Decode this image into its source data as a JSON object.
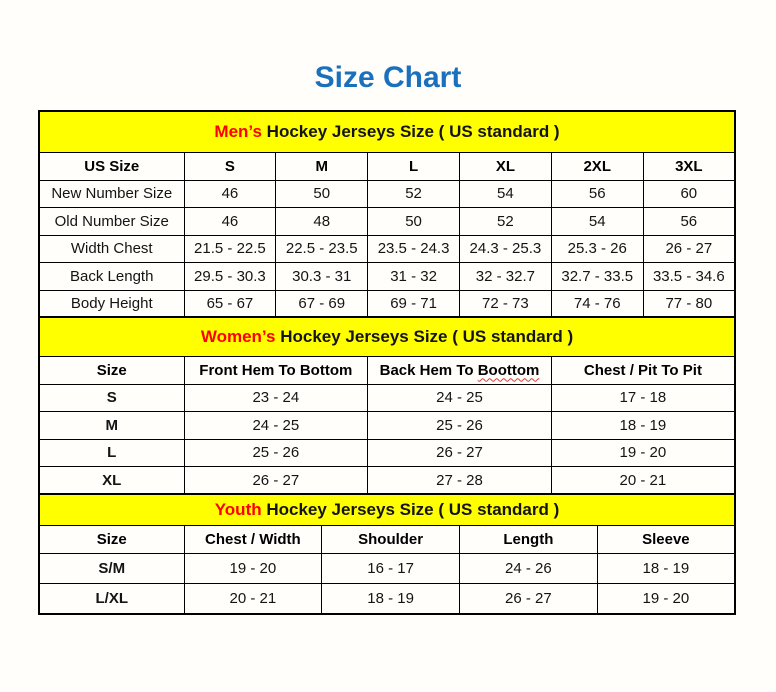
{
  "page": {
    "title": "Size Chart"
  },
  "colors": {
    "title_blue": "#1b70bd",
    "accent_red": "#ff0000",
    "band_yellow": "#ffff00",
    "border_black": "#000000"
  },
  "sections": [
    {
      "id": "mens",
      "banner": {
        "highlight": "Men’s",
        "rest": " Hockey Jerseys Size ( US standard )"
      },
      "columns": [
        "US Size",
        "S",
        "M",
        "L",
        "XL",
        "2XL",
        "3XL"
      ],
      "rows": [
        {
          "label": "New Number Size",
          "values": [
            "46",
            "50",
            "52",
            "54",
            "56",
            "60"
          ]
        },
        {
          "label": "Old Number Size",
          "values": [
            "46",
            "48",
            "50",
            "52",
            "54",
            "56"
          ]
        },
        {
          "label": "Width Chest",
          "values": [
            "21.5 - 22.5",
            "22.5 - 23.5",
            "23.5 - 24.3",
            "24.3 - 25.3",
            "25.3 - 26",
            "26 - 27"
          ]
        },
        {
          "label": "Back Length",
          "values": [
            "29.5 - 30.3",
            "30.3 - 31",
            "31 - 32",
            "32 - 32.7",
            "32.7 - 33.5",
            "33.5 - 34.6"
          ]
        },
        {
          "label": "Body Height",
          "values": [
            "65 - 67",
            "67 - 69",
            "69 - 71",
            "72 - 73",
            "74 - 76",
            "77 - 80"
          ]
        }
      ]
    },
    {
      "id": "womens",
      "banner": {
        "highlight": "Women’s",
        "rest": " Hockey Jerseys Size ( US standard )"
      },
      "columns": [
        "Size",
        "Front Hem To Bottom",
        "Back Hem To Boottom",
        "Chest / Pit To Pit"
      ],
      "misspelling": {
        "column_index": 2,
        "word": "Boottom"
      },
      "rows": [
        {
          "label": "S",
          "values": [
            "23 - 24",
            "24 - 25",
            "17 - 18"
          ]
        },
        {
          "label": "M",
          "values": [
            "24 - 25",
            "25 - 26",
            "18 - 19"
          ]
        },
        {
          "label": "L",
          "values": [
            "25 - 26",
            "26 - 27",
            "19 - 20"
          ]
        },
        {
          "label": "XL",
          "values": [
            "26 - 27",
            "27 - 28",
            "20 - 21"
          ]
        }
      ]
    },
    {
      "id": "youth",
      "banner": {
        "highlight": "Youth",
        "rest": " Hockey Jerseys Size ( US standard )"
      },
      "columns": [
        "Size",
        "Chest / Width",
        "Shoulder",
        "Length",
        "Sleeve"
      ],
      "rows": [
        {
          "label": "S/M",
          "values": [
            "19 - 20",
            "16 - 17",
            "24 - 26",
            "18 - 19"
          ]
        },
        {
          "label": "L/XL",
          "values": [
            "20 - 21",
            "18 - 19",
            "26 - 27",
            "19 - 20"
          ]
        }
      ]
    }
  ]
}
